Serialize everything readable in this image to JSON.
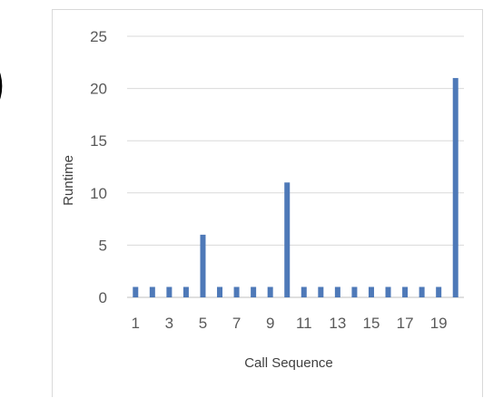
{
  "fragment": {
    "text": ")"
  },
  "chart_data": {
    "type": "bar",
    "title": "",
    "xlabel": "Call Sequence",
    "ylabel": "Runtime",
    "categories": [
      "1",
      "2",
      "3",
      "4",
      "5",
      "6",
      "7",
      "8",
      "9",
      "10",
      "11",
      "12",
      "13",
      "14",
      "15",
      "16",
      "17",
      "18",
      "19",
      "20"
    ],
    "x_tick_labels": [
      "1",
      "3",
      "5",
      "7",
      "9",
      "11",
      "13",
      "15",
      "17",
      "19"
    ],
    "y_tick_labels": [
      "0",
      "5",
      "10",
      "15",
      "20",
      "25"
    ],
    "series": [
      {
        "values": [
          1,
          1,
          1,
          1,
          6,
          1,
          1,
          1,
          1,
          11,
          1,
          1,
          1,
          1,
          1,
          1,
          1,
          1,
          1,
          21
        ]
      }
    ],
    "ylim": [
      0,
      25
    ],
    "grid": true,
    "legend": "none",
    "bar_color": "#4e79b8",
    "grid_color": "#d9d9d9",
    "axis_color": "#bfbfbf"
  }
}
